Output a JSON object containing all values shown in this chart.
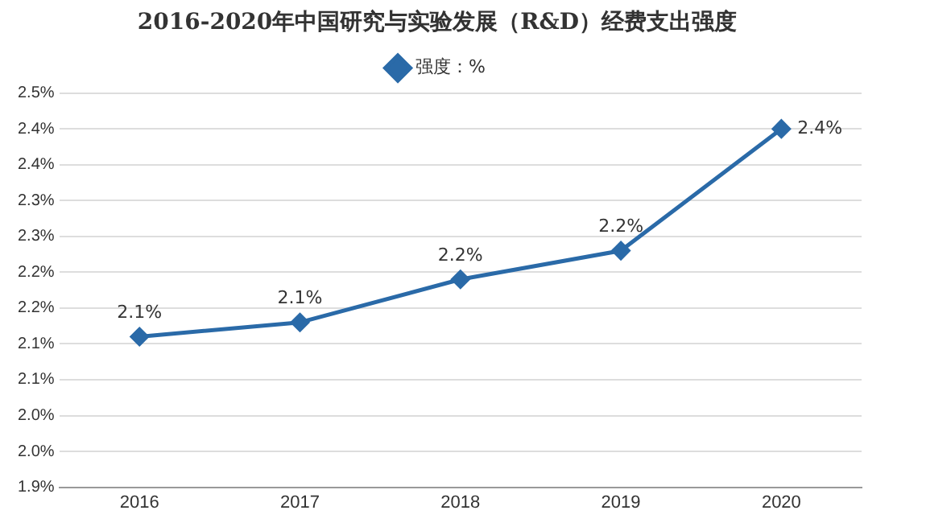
{
  "chart_data": {
    "type": "line",
    "title": "2016-2020年中国研究与实验发展（R&D）经费支出强度",
    "categories": [
      "2016",
      "2017",
      "2018",
      "2019",
      "2020"
    ],
    "series": [
      {
        "name": "强度：%",
        "color": "#2a6aa8",
        "values": [
          2.11,
          2.13,
          2.19,
          2.23,
          2.4
        ],
        "value_labels": [
          "2.1%",
          "2.1%",
          "2.2%",
          "2.2%",
          "2.4%"
        ]
      }
    ],
    "ylim": [
      1.9,
      2.45
    ],
    "yticks": [
      {
        "value": 1.9,
        "label": "1.9%"
      },
      {
        "value": 1.95,
        "label": "2.0%"
      },
      {
        "value": 2.0,
        "label": "2.0%"
      },
      {
        "value": 2.05,
        "label": "2.1%"
      },
      {
        "value": 2.1,
        "label": "2.1%"
      },
      {
        "value": 2.15,
        "label": "2.2%"
      },
      {
        "value": 2.2,
        "label": "2.2%"
      },
      {
        "value": 2.25,
        "label": "2.3%"
      },
      {
        "value": 2.3,
        "label": "2.3%"
      },
      {
        "value": 2.35,
        "label": "2.4%"
      },
      {
        "value": 2.4,
        "label": "2.4%"
      },
      {
        "value": 2.45,
        "label": "2.5%"
      }
    ],
    "grid": "y",
    "legend": "top",
    "marker": "diamond",
    "line_style": "solid"
  }
}
